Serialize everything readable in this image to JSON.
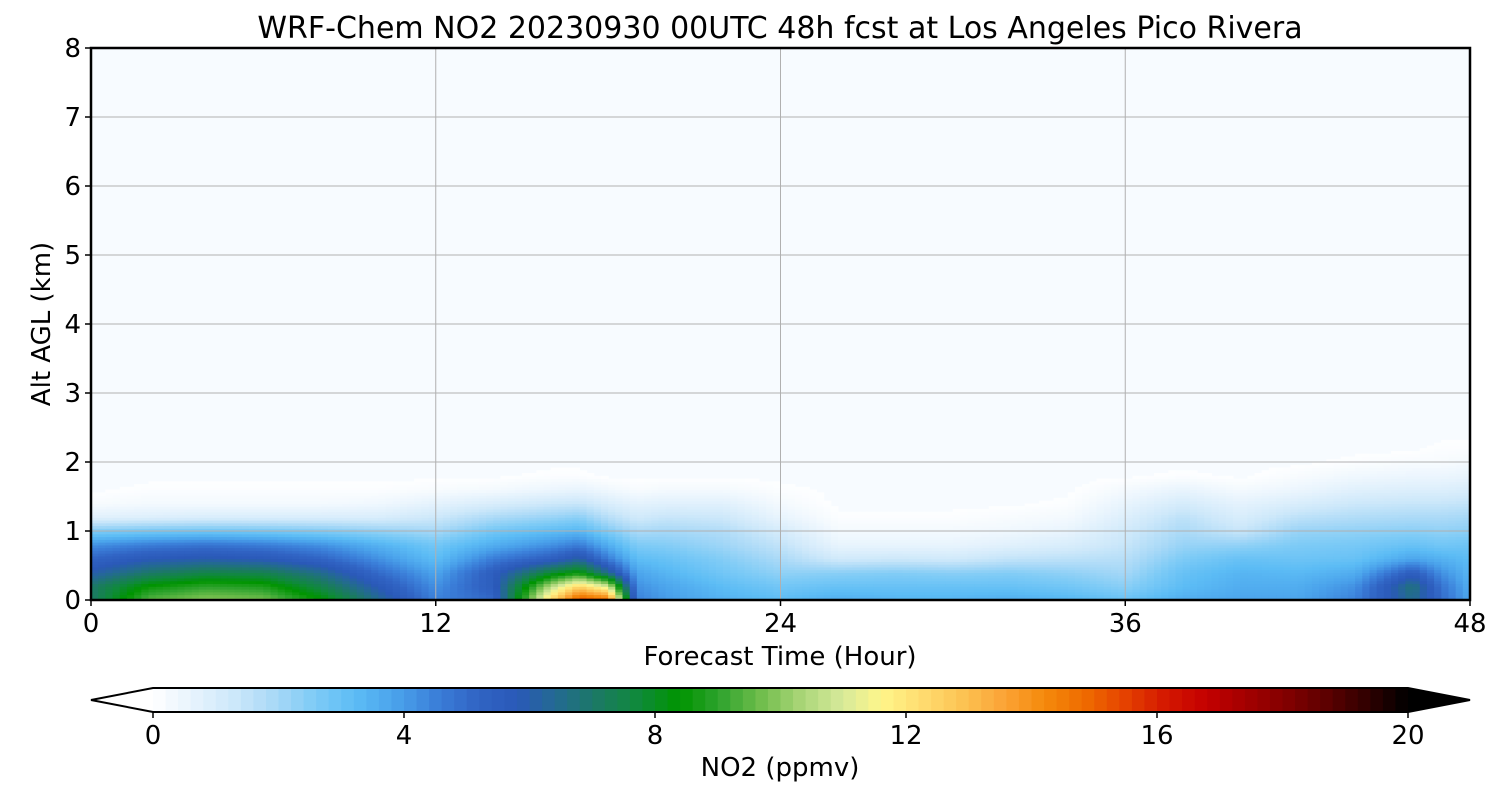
{
  "chart_data": {
    "type": "heatmap",
    "title": "WRF-Chem NO2  20230930 00UTC 48h fcst at Los Angeles Pico Rivera",
    "xlabel": "Forecast Time (Hour)",
    "ylabel": "Alt AGL (km)",
    "xlim": [
      0,
      48
    ],
    "ylim": [
      0,
      8
    ],
    "xticks": [
      0,
      12,
      24,
      36,
      48
    ],
    "yticks": [
      0,
      1,
      2,
      3,
      4,
      5,
      6,
      7,
      8
    ],
    "grid": true,
    "colorbar": {
      "label": "NO2  (ppmv)",
      "range": [
        0,
        20
      ],
      "ticks": [
        0,
        4,
        8,
        12,
        16,
        20
      ],
      "extend": "both",
      "colors": [
        "#ffffff",
        "#e6f3fd",
        "#cde8fa",
        "#a9d9f7",
        "#7ecbf6",
        "#5cbcf5",
        "#4aa2eb",
        "#3b7fd9",
        "#3164c4",
        "#2a59b8",
        "#236b8f",
        "#1b7a62",
        "#0f8a3a",
        "#009400",
        "#2fa32e",
        "#6fbd4b",
        "#a9d577",
        "#d6e99a",
        "#fff68a",
        "#ffdc70",
        "#fcc353",
        "#fba437",
        "#f58a0c",
        "#ef6c00",
        "#e54200",
        "#d41800",
        "#c40000",
        "#a30000",
        "#820000",
        "#5c0000",
        "#300000",
        "#000000"
      ]
    },
    "x": [
      0,
      2,
      4,
      6,
      8,
      10,
      12,
      14,
      16,
      17,
      18,
      19,
      20,
      22,
      24,
      26,
      28,
      30,
      32,
      34,
      36,
      38,
      40,
      42,
      44,
      46,
      47,
      48
    ],
    "y": [
      0.0,
      0.2,
      0.4,
      0.6,
      0.8,
      1.0,
      1.2,
      1.4,
      1.6,
      1.8,
      2.0,
      2.2,
      2.4,
      8.0
    ],
    "z": [
      [
        7.0,
        9.5,
        10.0,
        9.8,
        8.5,
        6.5,
        4.5,
        5.0,
        12.5,
        15.5,
        15.0,
        4.5,
        4.0,
        3.5,
        3.2,
        3.6,
        3.4,
        3.4,
        3.6,
        3.4,
        3.0,
        3.6,
        3.8,
        3.8,
        4.5,
        6.5,
        5.0,
        3.8
      ],
      [
        7.0,
        8.5,
        9.0,
        8.8,
        7.5,
        5.8,
        4.2,
        5.5,
        10.5,
        12.5,
        11.0,
        4.2,
        3.8,
        3.2,
        2.8,
        3.0,
        3.0,
        3.0,
        3.0,
        2.8,
        2.4,
        3.2,
        3.6,
        3.6,
        4.2,
        6.8,
        4.8,
        3.6
      ],
      [
        6.0,
        7.0,
        7.5,
        7.4,
        6.5,
        5.0,
        3.8,
        5.5,
        7.8,
        8.5,
        6.5,
        3.8,
        3.4,
        2.8,
        2.3,
        2.4,
        2.5,
        2.4,
        2.5,
        2.3,
        2.0,
        3.0,
        3.4,
        3.3,
        3.6,
        5.5,
        4.2,
        3.4
      ],
      [
        5.2,
        5.8,
        6.0,
        5.8,
        5.2,
        4.2,
        3.2,
        4.6,
        5.4,
        6.2,
        4.6,
        3.2,
        3.0,
        2.5,
        1.9,
        1.2,
        1.3,
        1.2,
        1.5,
        1.6,
        1.7,
        2.6,
        3.0,
        2.9,
        3.0,
        3.8,
        3.5,
        3.2
      ],
      [
        4.2,
        4.6,
        4.8,
        4.6,
        4.2,
        3.5,
        2.8,
        3.6,
        4.2,
        4.6,
        3.6,
        2.6,
        2.5,
        2.1,
        1.5,
        0.6,
        0.6,
        0.6,
        0.8,
        1.0,
        1.4,
        2.2,
        2.3,
        2.6,
        2.7,
        3.0,
        2.8,
        2.9
      ],
      [
        2.6,
        2.8,
        2.9,
        2.8,
        2.6,
        2.3,
        2.0,
        2.8,
        3.2,
        3.4,
        2.6,
        1.9,
        2.0,
        1.8,
        1.1,
        0.3,
        0.3,
        0.3,
        0.4,
        0.6,
        1.2,
        1.9,
        1.4,
        2.2,
        2.3,
        2.4,
        2.3,
        2.4
      ],
      [
        0.8,
        0.9,
        1.0,
        1.0,
        1.0,
        1.0,
        1.3,
        1.9,
        2.2,
        2.4,
        1.7,
        1.2,
        1.4,
        1.3,
        0.6,
        0.1,
        0.1,
        0.1,
        0.2,
        0.3,
        0.9,
        1.6,
        1.0,
        1.6,
        1.8,
        1.9,
        1.9,
        2.0
      ],
      [
        0.2,
        0.3,
        0.3,
        0.3,
        0.3,
        0.4,
        0.7,
        1.0,
        1.3,
        1.4,
        1.0,
        0.7,
        0.8,
        0.8,
        0.3,
        0.0,
        0.0,
        0.0,
        0.0,
        0.1,
        0.6,
        1.1,
        0.7,
        1.0,
        1.3,
        1.4,
        1.4,
        1.5
      ],
      [
        0.0,
        0.1,
        0.1,
        0.1,
        0.1,
        0.1,
        0.2,
        0.3,
        0.5,
        0.6,
        0.4,
        0.2,
        0.3,
        0.3,
        0.1,
        0.0,
        0.0,
        0.0,
        0.0,
        0.0,
        0.3,
        0.6,
        0.3,
        0.5,
        0.8,
        0.9,
        0.9,
        1.0
      ],
      [
        0.0,
        0.0,
        0.0,
        0.0,
        0.0,
        0.0,
        0.0,
        0.0,
        0.1,
        0.1,
        0.0,
        0.0,
        0.0,
        0.0,
        0.0,
        0.0,
        0.0,
        0.0,
        0.0,
        0.0,
        0.0,
        0.1,
        0.0,
        0.2,
        0.4,
        0.5,
        0.5,
        0.6
      ],
      [
        0.0,
        0.0,
        0.0,
        0.0,
        0.0,
        0.0,
        0.0,
        0.0,
        0.0,
        0.0,
        0.0,
        0.0,
        0.0,
        0.0,
        0.0,
        0.0,
        0.0,
        0.0,
        0.0,
        0.0,
        0.0,
        0.0,
        0.0,
        0.0,
        0.1,
        0.2,
        0.2,
        0.3
      ],
      [
        0.0,
        0.0,
        0.0,
        0.0,
        0.0,
        0.0,
        0.0,
        0.0,
        0.0,
        0.0,
        0.0,
        0.0,
        0.0,
        0.0,
        0.0,
        0.0,
        0.0,
        0.0,
        0.0,
        0.0,
        0.0,
        0.0,
        0.0,
        0.0,
        0.0,
        0.0,
        0.1,
        0.1
      ],
      [
        0.0,
        0.0,
        0.0,
        0.0,
        0.0,
        0.0,
        0.0,
        0.0,
        0.0,
        0.0,
        0.0,
        0.0,
        0.0,
        0.0,
        0.0,
        0.0,
        0.0,
        0.0,
        0.0,
        0.0,
        0.0,
        0.0,
        0.0,
        0.0,
        0.0,
        0.0,
        0.0,
        0.0
      ],
      [
        0.0,
        0.0,
        0.0,
        0.0,
        0.0,
        0.0,
        0.0,
        0.0,
        0.0,
        0.0,
        0.0,
        0.0,
        0.0,
        0.0,
        0.0,
        0.0,
        0.0,
        0.0,
        0.0,
        0.0,
        0.0,
        0.0,
        0.0,
        0.0,
        0.0,
        0.0,
        0.0,
        0.0
      ]
    ]
  }
}
